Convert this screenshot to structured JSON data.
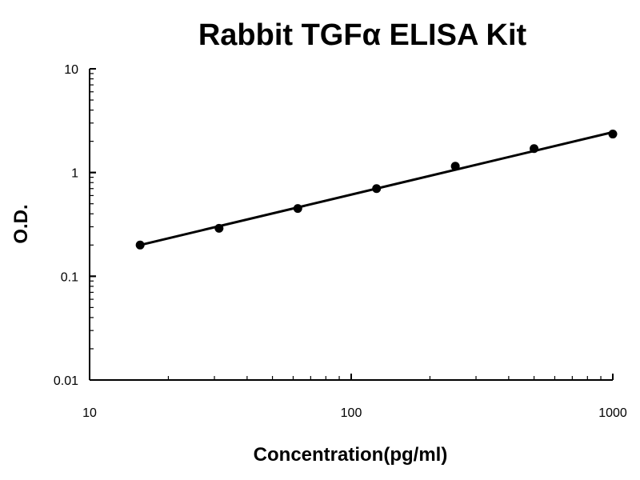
{
  "chart_data": {
    "type": "scatter",
    "title": "Rabbit TGFα ELISA Kit",
    "xlabel": "Concentration(pg/ml)",
    "ylabel": "O.D.",
    "x_scale": "log",
    "y_scale": "log",
    "xlim": [
      10,
      1000
    ],
    "ylim": [
      0.01,
      10
    ],
    "x_ticks": [
      {
        "value": 10,
        "label": "10"
      },
      {
        "value": 100,
        "label": "100"
      },
      {
        "value": 1000,
        "label": "1000"
      }
    ],
    "y_ticks": [
      {
        "value": 0.01,
        "label": "0.01"
      },
      {
        "value": 0.1,
        "label": "0.1"
      },
      {
        "value": 1,
        "label": "1"
      },
      {
        "value": 10,
        "label": "10"
      }
    ],
    "grid": false,
    "legend": "none",
    "series": [
      {
        "x": [
          15.6,
          31.25,
          62.5,
          125,
          250,
          500,
          1000
        ],
        "y": [
          0.2,
          0.29,
          0.45,
          0.7,
          1.15,
          1.7,
          2.35
        ],
        "color": "#000000"
      }
    ],
    "fit_line": {
      "x": [
        15.6,
        1000
      ],
      "y": [
        0.2,
        2.45
      ],
      "color": "#000000"
    }
  }
}
